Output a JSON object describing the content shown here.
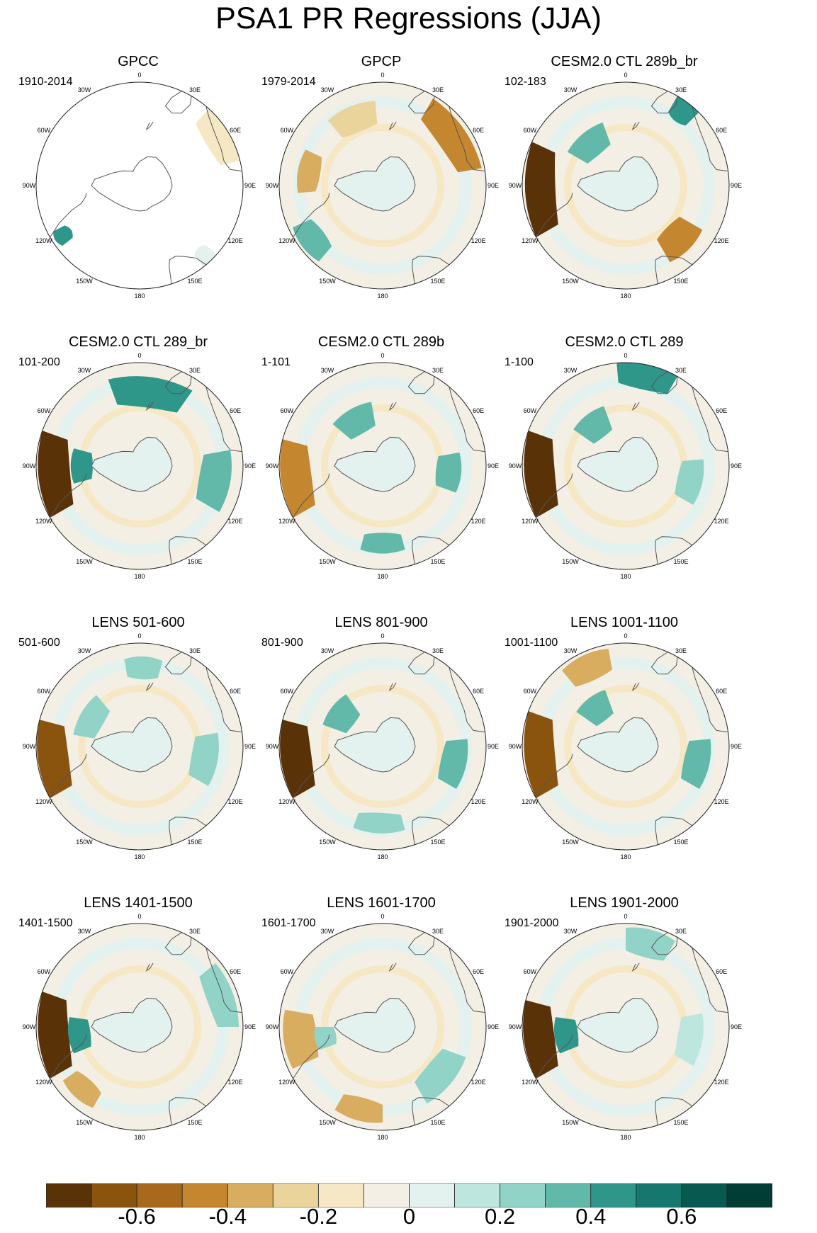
{
  "title": "PSA1 PR Regressions (JJA)",
  "chart_data": {
    "type": "heatmap",
    "title": "PSA1 PR Regressions (JJA)",
    "projection": "south polar stereographic",
    "longitude_labels": [
      "0",
      "30E",
      "60E",
      "90E",
      "120E",
      "150E",
      "180",
      "150W",
      "120W",
      "90W",
      "60W",
      "30W"
    ],
    "panels": [
      {
        "title": "GPCC",
        "years": "1910-2014"
      },
      {
        "title": "GPCP",
        "years": "1979-2014"
      },
      {
        "title": "CESM2.0 CTL 289b_br",
        "years": "102-183"
      },
      {
        "title": "CESM2.0 CTL 289_br",
        "years": "101-200"
      },
      {
        "title": "CESM2.0 CTL 289b",
        "years": "1-101"
      },
      {
        "title": "CESM2.0 CTL 289",
        "years": "1-100"
      },
      {
        "title": "LENS 501-600",
        "years": "501-600"
      },
      {
        "title": "LENS 801-900",
        "years": "801-900"
      },
      {
        "title": "LENS 1001-1100",
        "years": "1001-1100"
      },
      {
        "title": "LENS 1401-1500",
        "years": "1401-1500"
      },
      {
        "title": "LENS 1601-1700",
        "years": "1601-1700"
      },
      {
        "title": "LENS 1901-2000",
        "years": "1901-2000"
      }
    ],
    "colorbar": {
      "colors": [
        "#5a3208",
        "#8a540f",
        "#a8691c",
        "#c4862f",
        "#d8ad60",
        "#ead49b",
        "#f6e8c4",
        "#f4efe4",
        "#e3f1ef",
        "#bde6df",
        "#92d3c7",
        "#62b9aa",
        "#2f968a",
        "#15776d",
        "#085a51",
        "#023d35"
      ],
      "tick_labels": [
        "-0.6",
        "-0.4",
        "-0.2",
        "0",
        "0.2",
        "0.4",
        "0.6"
      ],
      "tick_values": [
        -0.6,
        -0.4,
        -0.2,
        0,
        0.2,
        0.4,
        0.6
      ],
      "range": [
        -0.8,
        0.8
      ]
    }
  }
}
